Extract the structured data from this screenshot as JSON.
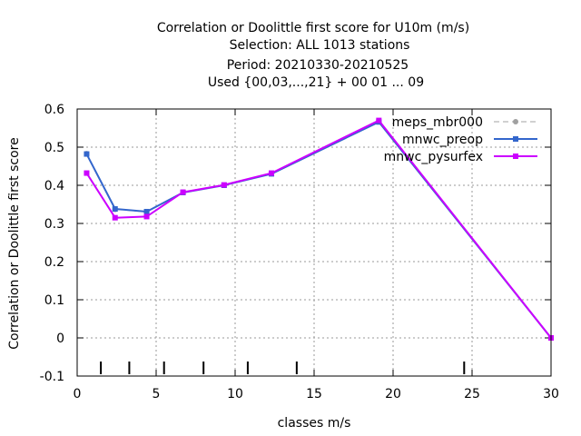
{
  "chart_data": {
    "type": "line",
    "title_lines": [
      "Correlation or Doolittle first score  for U10m (m/s)",
      "Selection: ALL    1013 stations",
      "Period: 20210330-20210525",
      "Used {00,03,...,21} + 00 01 ... 09"
    ],
    "xlabel": "classes m/s",
    "ylabel": "Correlation or Doolittle first score",
    "xlim": [
      0,
      30
    ],
    "ylim": [
      -0.1,
      0.6
    ],
    "xticks": [
      0,
      5,
      10,
      15,
      20,
      25,
      30
    ],
    "yticks": [
      -0.1,
      0,
      0.1,
      0.2,
      0.3,
      0.4,
      0.5,
      0.6
    ],
    "xtick_labels": [
      "0",
      "5",
      "10",
      "15",
      "20",
      "25",
      "30"
    ],
    "ytick_labels": [
      "-0.1",
      "0",
      "0.1",
      "0.2",
      "0.3",
      "0.4",
      "0.5",
      "0.6"
    ],
    "grid": true,
    "legend_position": "top-right",
    "class_boundaries": [
      1.5,
      3.3,
      5.5,
      8.0,
      10.8,
      13.9,
      24.5
    ],
    "series": [
      {
        "name": "meps_mbr000",
        "color": "#a0a0a0",
        "dashed": true,
        "marker": "circle",
        "x": [
          0.6,
          2.4,
          4.4,
          6.7,
          9.3,
          12.3,
          19.1,
          30.0
        ],
        "y": [
          0.483,
          0.337,
          0.33,
          0.382,
          0.4,
          0.43,
          0.567,
          0.0
        ]
      },
      {
        "name": "mnwc_preop",
        "color": "#3366cc",
        "dashed": false,
        "marker": "square",
        "x": [
          0.6,
          2.4,
          4.4,
          6.7,
          9.3,
          12.3,
          19.1,
          30.0
        ],
        "y": [
          0.482,
          0.338,
          0.331,
          0.381,
          0.4,
          0.43,
          0.566,
          0.0
        ]
      },
      {
        "name": "mnwc_pysurfex",
        "color": "#cc00ff",
        "dashed": false,
        "marker": "square",
        "x": [
          0.6,
          2.4,
          4.4,
          6.7,
          9.3,
          12.3,
          19.1,
          30.0
        ],
        "y": [
          0.432,
          0.315,
          0.318,
          0.382,
          0.401,
          0.432,
          0.57,
          0.0
        ]
      }
    ]
  }
}
